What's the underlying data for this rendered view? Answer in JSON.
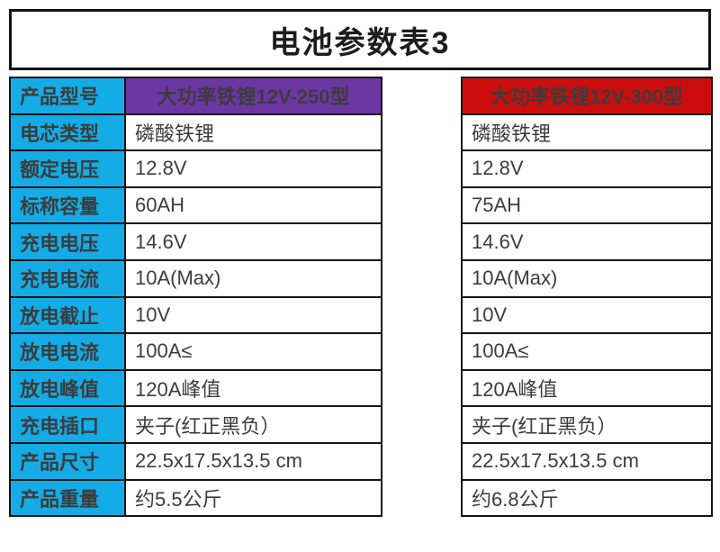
{
  "title": "电池参数表3",
  "table": {
    "header": {
      "label": "产品型号",
      "model_a": "大功率铁锂12V-250型",
      "model_b": "大功率铁锂12V-300型"
    },
    "rows": [
      {
        "label": "电芯类型",
        "a": "磷酸铁锂",
        "b": "磷酸铁锂"
      },
      {
        "label": "额定电压",
        "a": "12.8V",
        "b": "12.8V"
      },
      {
        "label": "标称容量",
        "a": "60AH",
        "b": "75AH"
      },
      {
        "label": "充电电压",
        "a": "14.6V",
        "b": "14.6V"
      },
      {
        "label": "充电电流",
        "a": "10A(Max)",
        "b": "10A(Max)"
      },
      {
        "label": "放电截止",
        "a": "10V",
        "b": "10V"
      },
      {
        "label": "放电电流",
        "a": "100A≤",
        "b": "100A≤"
      },
      {
        "label": "放电峰值",
        "a": "120A峰值",
        "b": "120A峰值"
      },
      {
        "label": "充电插口",
        "a": "夹子(红正黑负）",
        "b": "夹子(红正黑负）"
      },
      {
        "label": "产品尺寸",
        "a": "22.5x17.5x13.5 cm",
        "b": "22.5x17.5x13.5 cm"
      },
      {
        "label": "产品重量",
        "a": "约5.5公斤",
        "b": "约6.8公斤"
      }
    ],
    "colors": {
      "label_bg": "#14ace6",
      "model_a_bg": "#6c37a3",
      "model_b_bg": "#cc0d0d",
      "border": "#141414",
      "value_text": "#3c3c3c"
    }
  }
}
